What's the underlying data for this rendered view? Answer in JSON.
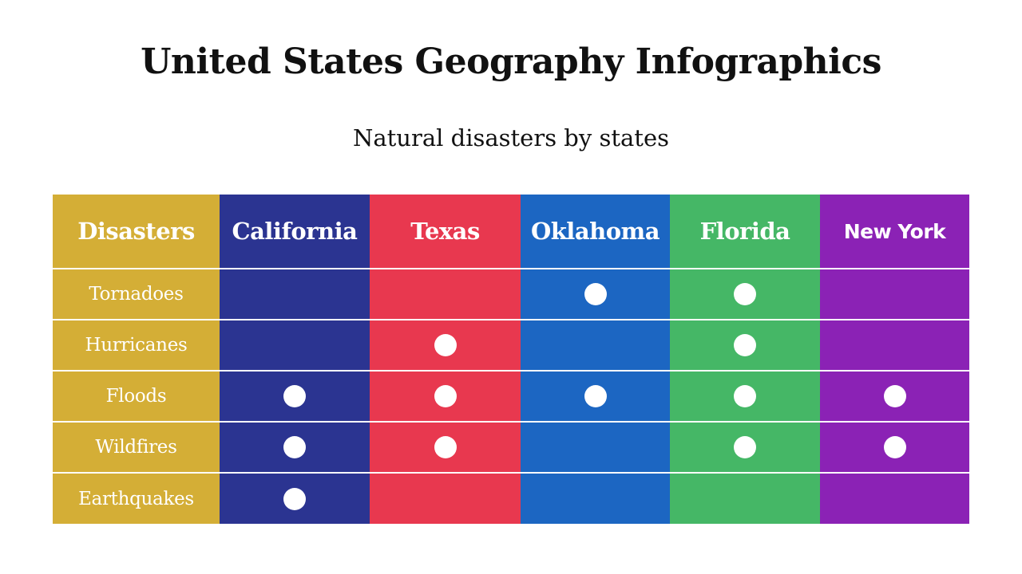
{
  "title": "United States Geography Infographics",
  "subtitle": "Natural disasters by states",
  "table": {
    "corner_label": "Disasters",
    "columns": [
      {
        "label": "California",
        "color": "#2b3491",
        "font": "serif"
      },
      {
        "label": "Texas",
        "color": "#e8384f",
        "font": "serif"
      },
      {
        "label": "Oklahoma",
        "color": "#1c66c2",
        "font": "serif"
      },
      {
        "label": "Florida",
        "color": "#45b766",
        "font": "serif"
      },
      {
        "label": "New York",
        "color": "#8b22b5",
        "font": "sans"
      }
    ],
    "label_color": "#d4ae36",
    "rows": [
      {
        "label": "Tornadoes",
        "marks": [
          false,
          false,
          true,
          true,
          false
        ]
      },
      {
        "label": "Hurricanes",
        "marks": [
          false,
          true,
          false,
          true,
          false
        ]
      },
      {
        "label": "Floods",
        "marks": [
          true,
          true,
          true,
          true,
          true
        ]
      },
      {
        "label": "Wildfires",
        "marks": [
          true,
          true,
          false,
          true,
          true
        ]
      },
      {
        "label": "Earthquakes",
        "marks": [
          true,
          false,
          false,
          false,
          false
        ]
      }
    ],
    "mark_icon": "filled-circle-icon",
    "mark_color": "#ffffff"
  }
}
